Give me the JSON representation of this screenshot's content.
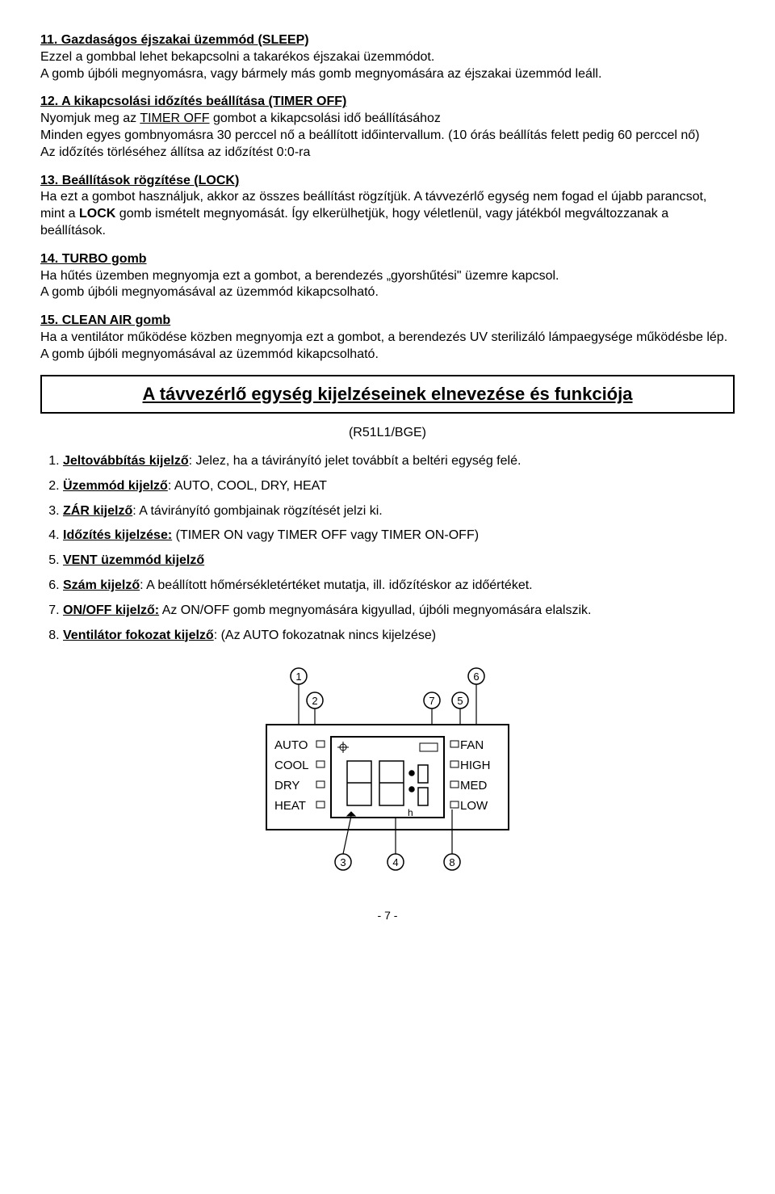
{
  "sections": {
    "s11": {
      "heading": "11.  Gazdaságos éjszakai üzemmód  (SLEEP)",
      "body": "Ezzel a gombbal lehet bekapcsolni a takarékos éjszakai üzemmódot.\nA gomb újbóli megnyomásra, vagy bármely más gomb megnyomására az éjszakai üzemmód leáll."
    },
    "s12": {
      "heading": "12.  A kikapcsolási időzítés beállítása (TIMER OFF)",
      "body": "Nyomjuk meg az TIMER OFF gombot a kikapcsolási idő beállításához\nMinden egyes gombnyomásra 30 perccel nő a beállított időintervallum. (10 órás beállítás felett pedig 60 perccel nő)\nAz időzítés törléséhez állítsa az időzítést 0:0-ra",
      "underline_extra": "TIMER OFF"
    },
    "s13": {
      "heading": "13.  Beállítások rögzítése (LOCK)",
      "body": "Ha ezt a gombot használjuk, akkor az összes beállítást rögzítjük. A távvezérlő egység nem fogad el újabb parancsot, mint a LOCK gomb ismételt megnyomását. Így elkerülhetjük, hogy véletlenül, vagy játékból megváltozzanak a beállítások.",
      "bold_extra": "LOCK"
    },
    "s14": {
      "heading": "14.  TURBO gomb",
      "body": "Ha hűtés üzemben megnyomja ezt a gombot, a berendezés „gyorshűtési\" üzemre kapcsol.\nA gomb újbóli megnyomásával az üzemmód kikapcsolható."
    },
    "s15": {
      "heading": "15.  CLEAN AIR gomb",
      "body": "Ha a ventilátor működése közben megnyomja ezt a gombot, a berendezés UV sterilizáló lámpaegysége működésbe lép.\nA gomb újbóli megnyomásával az üzemmód kikapcsolható."
    }
  },
  "title_box": "A távvezérlő egység kijelzéseinek elnevezése és funkciója",
  "model": "(R51L1/BGE)",
  "list": [
    {
      "label": "Jeltovábbítás kijelző",
      "text": ": Jelez, ha a távirányító jelet továbbít a beltéri egység felé."
    },
    {
      "label": "Üzemmód kijelző",
      "text": ": AUTO, COOL, DRY, HEAT"
    },
    {
      "label": "ZÁR kijelző",
      "text": ": A távirányító gombjainak rögzítését jelzi ki."
    },
    {
      "label": "Időzítés kijelzése:",
      "text": " (TIMER ON vagy TIMER OFF vagy TIMER ON-OFF)"
    },
    {
      "label": "VENT üzemmód kijelző",
      "text": ""
    },
    {
      "label": "Szám kijelző",
      "text": ": A beállított hőmérsékletértéket mutatja, ill. időzítéskor az időértéket."
    },
    {
      "label": "ON/OFF kijelző:",
      "text": " Az ON/OFF gomb megnyomására kigyullad, újbóli megnyomására elalszik."
    },
    {
      "label": "Ventilátor fokozat kijelző",
      "text": ": (Az AUTO fokozatnak nincs kijelzése)"
    }
  ],
  "diagram": {
    "left_labels": [
      "AUTO",
      "COOL",
      "DRY",
      "HEAT"
    ],
    "right_labels": [
      "FAN",
      "HIGH",
      "MED",
      "LOW"
    ],
    "callouts": [
      "1",
      "2",
      "3",
      "4",
      "5",
      "6",
      "7",
      "8"
    ],
    "bottom_label": "h",
    "colors": {
      "line": "#000000",
      "bg": "#ffffff"
    }
  },
  "page_number": "- 7 -"
}
